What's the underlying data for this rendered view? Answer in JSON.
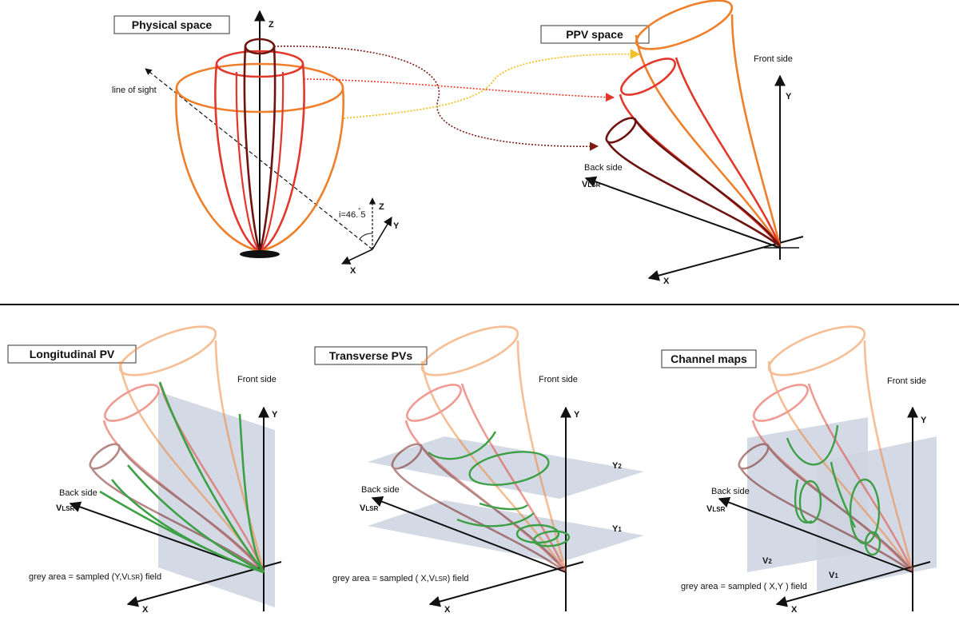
{
  "physical": {
    "title": "Physical space",
    "axis_z": "Z",
    "line_of_sight": "line of sight",
    "inclination": "i=46.",
    "inclination_deg": "°",
    "inclination_tail": "5",
    "frame": {
      "z": "Z",
      "y": "Y",
      "x": "X"
    }
  },
  "ppv": {
    "title": "PPV space",
    "front": "Front side",
    "back": "Back  side",
    "axis_y": "Y",
    "axis_v": "V",
    "axis_v_sub": "LSR",
    "axis_x": "X"
  },
  "panels": [
    {
      "title": "Longitudinal PV",
      "front": "Front side",
      "back": "Back  side",
      "axis_y": "Y",
      "axis_v": "V",
      "axis_v_sub": "LSR",
      "axis_x": "X",
      "caption": "grey area = sampled (Y,V",
      "caption_sub": "LSR",
      "caption_tail": ") field"
    },
    {
      "title": "Transverse PVs",
      "front": "Front side",
      "back": "Back  side",
      "axis_y": "Y",
      "axis_v": "V",
      "axis_v_sub": "LSR",
      "axis_x": "X",
      "plane_1": "Y",
      "plane_1_sub": "1",
      "plane_2": "Y",
      "plane_2_sub": "2",
      "caption": "grey area = sampled ( X,V",
      "caption_sub": "LSR",
      "caption_tail": ") field"
    },
    {
      "title": "Channel maps",
      "front": "Front side",
      "back": "Back  side",
      "axis_y": "Y",
      "axis_v": "V",
      "axis_v_sub": "LSR",
      "axis_x": "X",
      "plane_1": "V",
      "plane_1_sub": "1",
      "plane_2": "V",
      "plane_2_sub": "2",
      "caption": "grey area = sampled ( X,Y ) field"
    }
  ],
  "colors": {
    "outer": "#ee7f2b",
    "middle": "#e2382b",
    "inner": "#6d1410",
    "green": "#3ea046",
    "plane": "#cdd4e0",
    "axis": "#111111",
    "los_arrow_outer": "#f2c026",
    "los_arrow_middle": "#e2382b",
    "los_arrow_inner": "#7a1c14"
  }
}
